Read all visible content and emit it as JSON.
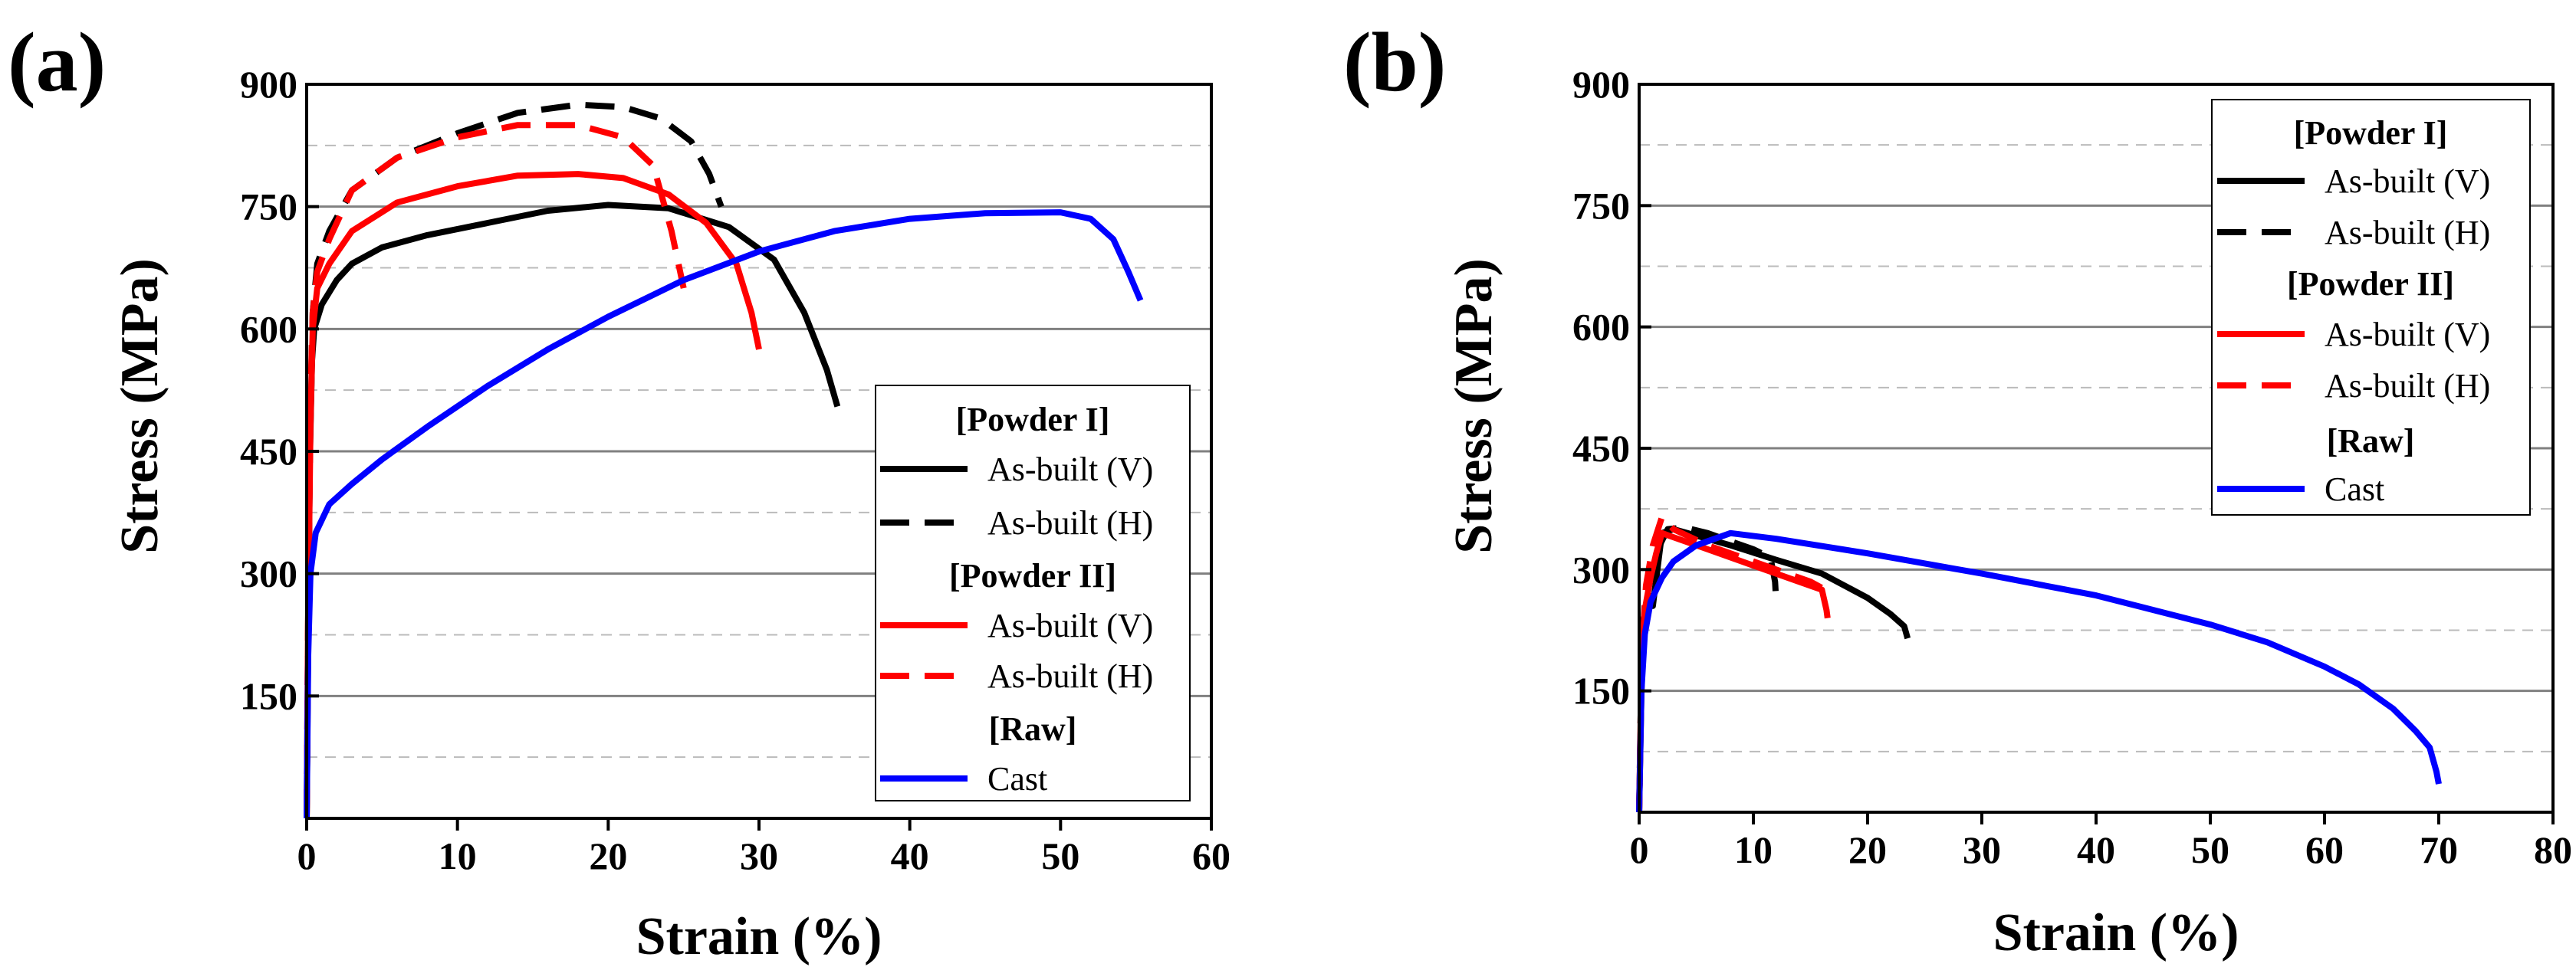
{
  "chart_data": [
    {
      "type": "line",
      "panel_label": "(a)",
      "xlabel": "Strain (%)",
      "ylabel": "Stress (MPa)",
      "xlim": [
        0,
        60
      ],
      "ylim": [
        0,
        900
      ],
      "xticks": [
        0,
        10,
        20,
        30,
        40,
        50,
        60
      ],
      "yticks": [
        150,
        300,
        450,
        600,
        750,
        900
      ],
      "grid_major_y": [
        150,
        300,
        450,
        600,
        750
      ],
      "grid_minor_y": [
        75,
        225,
        375,
        525,
        675,
        825
      ],
      "legend_position": "bottom-right",
      "legend_groups": [
        {
          "title": "[Powder I]",
          "entries": [
            "As-built (V)",
            "As-built (H)"
          ]
        },
        {
          "title": "[Powder II]",
          "entries": [
            "As-built (V)",
            "As-built (H)"
          ]
        },
        {
          "title": "[Raw]",
          "entries": [
            "Cast"
          ]
        }
      ],
      "series": [
        {
          "name": "Powder I As-built (V)",
          "color": "#000000",
          "dash": "solid",
          "points": [
            [
              0,
              0
            ],
            [
              0.1,
              220
            ],
            [
              0.2,
              430
            ],
            [
              0.35,
              560
            ],
            [
              0.5,
              600
            ],
            [
              1,
              630
            ],
            [
              2,
              660
            ],
            [
              3,
              680
            ],
            [
              5,
              700
            ],
            [
              8,
              715
            ],
            [
              12,
              730
            ],
            [
              16,
              745
            ],
            [
              20,
              752
            ],
            [
              24,
              748
            ],
            [
              28,
              725
            ],
            [
              31,
              685
            ],
            [
              33,
              620
            ],
            [
              34.5,
              550
            ],
            [
              35.2,
              505
            ]
          ]
        },
        {
          "name": "Powder I As-built (H)",
          "color": "#000000",
          "dash": "dashed",
          "points": [
            [
              0,
              0
            ],
            [
              0.1,
              250
            ],
            [
              0.25,
              500
            ],
            [
              0.4,
              620
            ],
            [
              0.7,
              680
            ],
            [
              1.5,
              720
            ],
            [
              3,
              770
            ],
            [
              6,
              810
            ],
            [
              10,
              840
            ],
            [
              14,
              865
            ],
            [
              18,
              875
            ],
            [
              21,
              872
            ],
            [
              23.5,
              858
            ],
            [
              25.5,
              830
            ],
            [
              26.7,
              790
            ],
            [
              27.5,
              750
            ]
          ]
        },
        {
          "name": "Powder II As-built (V)",
          "color": "#ff0000",
          "dash": "solid",
          "points": [
            [
              0,
              0
            ],
            [
              0.1,
              250
            ],
            [
              0.25,
              480
            ],
            [
              0.4,
              600
            ],
            [
              0.7,
              650
            ],
            [
              1.5,
              680
            ],
            [
              3,
              720
            ],
            [
              6,
              755
            ],
            [
              10,
              775
            ],
            [
              14,
              788
            ],
            [
              18,
              790
            ],
            [
              21,
              785
            ],
            [
              24,
              765
            ],
            [
              26.5,
              730
            ],
            [
              28.5,
              680
            ],
            [
              29.5,
              620
            ],
            [
              30,
              575
            ]
          ]
        },
        {
          "name": "Powder II As-built (H)",
          "color": "#ff0000",
          "dash": "dashed",
          "points": [
            [
              0,
              0
            ],
            [
              0.1,
              260
            ],
            [
              0.25,
              510
            ],
            [
              0.4,
              620
            ],
            [
              0.7,
              670
            ],
            [
              1.5,
              710
            ],
            [
              3,
              770
            ],
            [
              6,
              810
            ],
            [
              10,
              835
            ],
            [
              14,
              850
            ],
            [
              18,
              850
            ],
            [
              21,
              835
            ],
            [
              23,
              800
            ],
            [
              24.2,
              720
            ],
            [
              25,
              650
            ]
          ]
        },
        {
          "name": "Raw Cast",
          "color": "#0000ff",
          "dash": "solid",
          "points": [
            [
              0,
              0
            ],
            [
              0.1,
              200
            ],
            [
              0.25,
              300
            ],
            [
              0.6,
              350
            ],
            [
              1.5,
              385
            ],
            [
              3,
              410
            ],
            [
              5,
              440
            ],
            [
              8,
              480
            ],
            [
              12,
              530
            ],
            [
              16,
              575
            ],
            [
              20,
              615
            ],
            [
              25,
              660
            ],
            [
              30,
              695
            ],
            [
              35,
              720
            ],
            [
              40,
              735
            ],
            [
              45,
              742
            ],
            [
              50,
              743
            ],
            [
              52,
              735
            ],
            [
              53.5,
              710
            ],
            [
              54.5,
              670
            ],
            [
              55.3,
              635
            ]
          ]
        }
      ]
    },
    {
      "type": "line",
      "panel_label": "(b)",
      "xlabel": "Strain (%)",
      "ylabel": "Stress (MPa)",
      "xlim": [
        0,
        80
      ],
      "ylim": [
        0,
        900
      ],
      "xticks": [
        0,
        10,
        20,
        30,
        40,
        50,
        60,
        70,
        80
      ],
      "yticks": [
        150,
        300,
        450,
        600,
        750,
        900
      ],
      "grid_major_y": [
        150,
        300,
        450,
        600,
        750
      ],
      "grid_minor_y": [
        75,
        225,
        375,
        525,
        675,
        825
      ],
      "legend_position": "top-right",
      "legend_groups": [
        {
          "title": "[Powder I]",
          "entries": [
            "As-built (V)",
            "As-built (H)"
          ]
        },
        {
          "title": "[Powder II]",
          "entries": [
            "As-built (V)",
            "As-built (H)"
          ]
        },
        {
          "title": "[Raw]",
          "entries": [
            "Cast"
          ]
        }
      ],
      "series": [
        {
          "name": "Powder I As-built (V)",
          "color": "#000000",
          "dash": "solid",
          "points": [
            [
              0,
              0
            ],
            [
              0.2,
              150
            ],
            [
              0.4,
              240
            ],
            [
              0.8,
              270
            ],
            [
              1.2,
              255
            ],
            [
              1.6,
              300
            ],
            [
              2,
              345
            ],
            [
              3,
              350
            ],
            [
              5,
              342
            ],
            [
              8,
              330
            ],
            [
              12,
              312
            ],
            [
              16,
              295
            ],
            [
              20,
              265
            ],
            [
              22,
              245
            ],
            [
              23.2,
              230
            ],
            [
              23.5,
              215
            ]
          ]
        },
        {
          "name": "Powder I As-built (H)",
          "color": "#000000",
          "dash": "dashed",
          "points": [
            [
              0,
              0
            ],
            [
              0.2,
              180
            ],
            [
              0.5,
              260
            ],
            [
              1,
              290
            ],
            [
              1.8,
              330
            ],
            [
              2.5,
              350
            ],
            [
              4,
              352
            ],
            [
              6,
              345
            ],
            [
              8,
              335
            ],
            [
              10,
              325
            ],
            [
              11.5,
              315
            ],
            [
              11.9,
              285
            ],
            [
              12,
              260
            ]
          ]
        },
        {
          "name": "Powder II As-built (V)",
          "color": "#ff0000",
          "dash": "solid",
          "points": [
            [
              0,
              0
            ],
            [
              0.2,
              170
            ],
            [
              0.5,
              250
            ],
            [
              1,
              290
            ],
            [
              1.5,
              320
            ],
            [
              2,
              345
            ],
            [
              3,
              340
            ],
            [
              6,
              325
            ],
            [
              10,
              305
            ],
            [
              14,
              285
            ],
            [
              16,
              275
            ],
            [
              16.4,
              250
            ],
            [
              16.5,
              240
            ]
          ]
        },
        {
          "name": "Powder II As-built (H)",
          "color": "#ff0000",
          "dash": "dashed",
          "points": [
            [
              0,
              0
            ],
            [
              0.2,
              180
            ],
            [
              0.6,
              280
            ],
            [
              1.2,
              330
            ],
            [
              2,
              365
            ],
            [
              3,
              350
            ],
            [
              6,
              330
            ],
            [
              10,
              310
            ],
            [
              13,
              295
            ],
            [
              15,
              285
            ],
            [
              16.3,
              275
            ]
          ]
        },
        {
          "name": "Raw Cast",
          "color": "#0000ff",
          "dash": "solid",
          "points": [
            [
              0,
              0
            ],
            [
              0.2,
              150
            ],
            [
              0.5,
              220
            ],
            [
              1,
              260
            ],
            [
              2,
              290
            ],
            [
              3,
              310
            ],
            [
              5,
              330
            ],
            [
              8,
              345
            ],
            [
              12,
              338
            ],
            [
              20,
              320
            ],
            [
              30,
              295
            ],
            [
              40,
              268
            ],
            [
              50,
              232
            ],
            [
              55,
              210
            ],
            [
              60,
              180
            ],
            [
              63,
              158
            ],
            [
              66,
              128
            ],
            [
              68,
              100
            ],
            [
              69.2,
              80
            ],
            [
              69.8,
              50
            ],
            [
              70,
              35
            ]
          ]
        }
      ]
    }
  ]
}
